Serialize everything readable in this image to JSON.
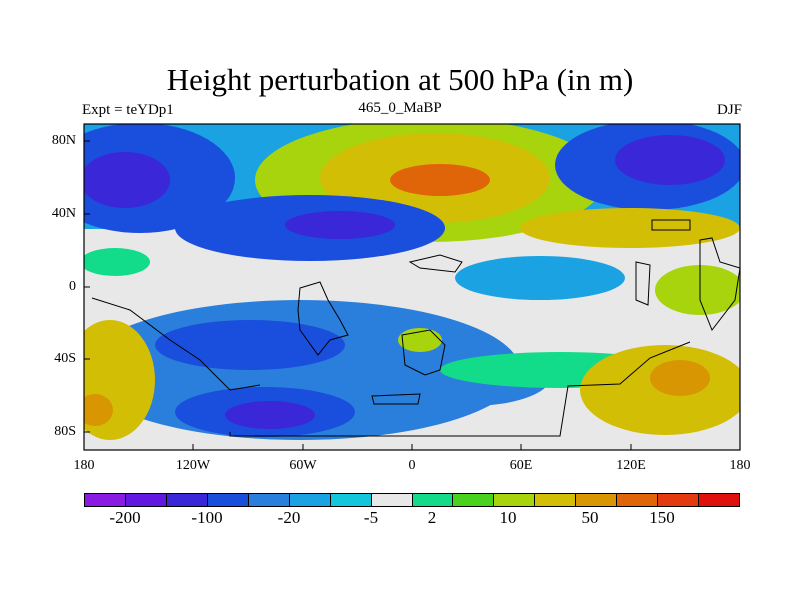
{
  "title": "Height perturbation at 500 hPa (in m)",
  "left_label": "Expt = teYDp1",
  "center_label": "465_0_MaBP",
  "right_label": "DJF",
  "lat_ticks": [
    "80N",
    "40N",
    "0",
    "40S",
    "80S"
  ],
  "lon_ticks": [
    "180",
    "120W",
    "60W",
    "0",
    "60E",
    "120E",
    "180"
  ],
  "colorbar": {
    "colors": [
      "#8a1be3",
      "#6218e0",
      "#3a28d8",
      "#1a4edd",
      "#2a7edc",
      "#1aa2e2",
      "#13c6dc",
      "#e8e8e8",
      "#12dc8a",
      "#48d21e",
      "#a8d40e",
      "#d2be05",
      "#d89602",
      "#e06408",
      "#e33a0f",
      "#e0100c"
    ],
    "labels": [
      "-200",
      "-100",
      "-20",
      "-5",
      "2",
      "10",
      "50",
      "150"
    ]
  }
}
